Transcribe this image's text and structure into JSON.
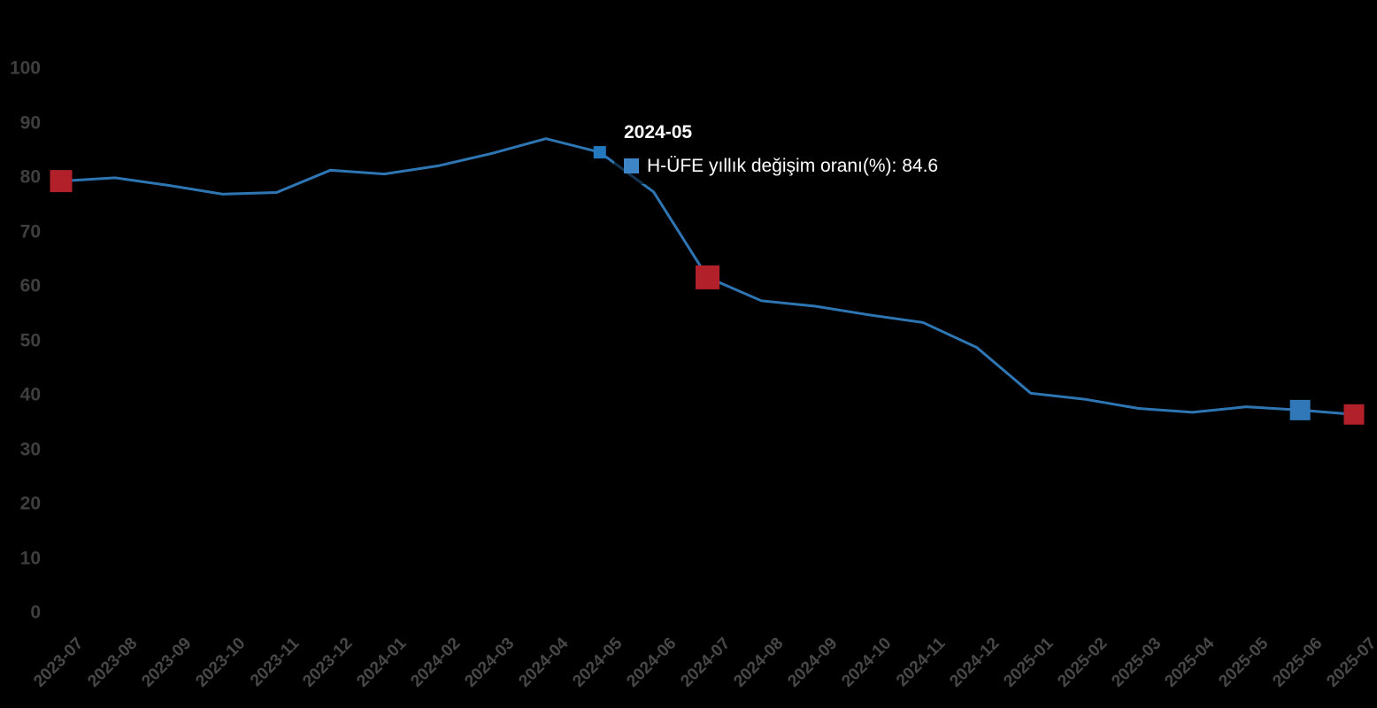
{
  "page": {
    "background_color": "#000000"
  },
  "tooltip": {
    "title": "2024-05",
    "label": "H-ÜFE yıllık değişim oranı(%): 84.6",
    "swatch_color": "#3d85c6"
  },
  "chart_data": {
    "type": "line",
    "title": "",
    "xlabel": "",
    "ylabel": "",
    "ylim": [
      0,
      100
    ],
    "grid": false,
    "legend_position": "none",
    "background_color": "#000000",
    "line_color": "#2e76b3",
    "y_axis_label_color": "#3f3f3f",
    "x_axis_label_color": "#484848",
    "yticks": [
      0,
      10,
      20,
      30,
      40,
      50,
      60,
      70,
      80,
      90,
      100
    ],
    "categories": [
      "2023-07",
      "2023-08",
      "2023-09",
      "2023-10",
      "2023-11",
      "2023-12",
      "2024-01",
      "2024-02",
      "2024-03",
      "2024-04",
      "2024-05",
      "2024-06",
      "2024-07",
      "2024-08",
      "2024-09",
      "2024-10",
      "2024-11",
      "2024-12",
      "2025-01",
      "2025-02",
      "2025-03",
      "2025-04",
      "2025-05",
      "2025-06",
      "2025-07"
    ],
    "series": [
      {
        "name": "H-ÜFE yıllık değişim oranı(%)",
        "values": [
          79.3,
          79.9,
          78.5,
          76.9,
          77.2,
          81.3,
          80.6,
          82.1,
          84.4,
          87.1,
          84.6,
          77.3,
          61.6,
          57.3,
          56.3,
          54.7,
          53.3,
          48.7,
          40.3,
          39.2,
          37.5,
          36.8,
          37.8,
          37.2,
          36.4
        ]
      }
    ],
    "highlighted_point": {
      "category": "2024-05",
      "value": 84.6,
      "marker_color": "#2478bd",
      "marker_size": 14
    },
    "markers": [
      {
        "category": "2023-07",
        "value": 79.3,
        "color": "#b2202a",
        "size": 25
      },
      {
        "category": "2024-07",
        "value": 61.6,
        "color": "#b2202a",
        "size": 27
      },
      {
        "category": "2025-06",
        "value": 37.2,
        "color": "#3178b8",
        "size": 23
      },
      {
        "category": "2025-07",
        "value": 36.4,
        "color": "#b2202a",
        "size": 23
      }
    ]
  }
}
